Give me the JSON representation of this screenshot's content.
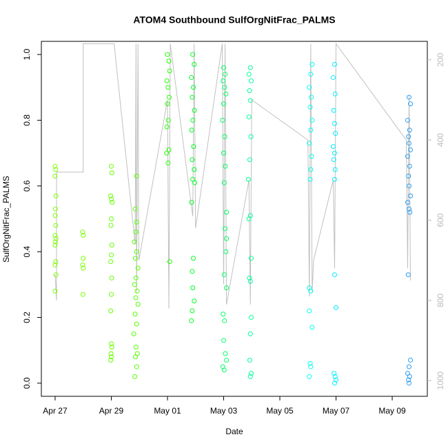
{
  "chart_data": {
    "type": "scatter",
    "title": "ATOM4 Southbound SulfOrgNitFrac_PALMS",
    "x_label": "Date",
    "y_label": "SulfOrgNitFrac_PALMS",
    "xlim": [
      -0.49,
      13.25
    ],
    "xticks": [
      {
        "value": 0,
        "label": "Apr 27"
      },
      {
        "value": 2,
        "label": "Apr 29"
      },
      {
        "value": 4,
        "label": "May 01"
      },
      {
        "value": 6,
        "label": "May 03"
      },
      {
        "value": 8,
        "label": "May 05"
      },
      {
        "value": 10,
        "label": "May 07"
      },
      {
        "value": 12,
        "label": "May 09"
      }
    ],
    "ylim": [
      -0.04,
      1.04
    ],
    "yticks": [
      {
        "value": 0,
        "label": "0.0"
      },
      {
        "value": 0.2,
        "label": "0.2"
      },
      {
        "value": 0.4,
        "label": "0.4"
      },
      {
        "value": 0.6,
        "label": "0.6"
      },
      {
        "value": 0.8,
        "label": "0.8"
      },
      {
        "value": 1,
        "label": "1.0"
      }
    ],
    "y2lim": [
      1039,
      154
    ],
    "y2ticks": [
      200,
      400,
      600,
      800,
      1000
    ],
    "y2_color": "#bbbbbb",
    "grid": false,
    "series": [
      {
        "color": "#7fff00",
        "x": [
          0,
          0.02,
          0,
          0.03,
          0.01,
          0,
          0.02,
          0,
          0.03,
          0.01,
          0,
          0.02,
          0,
          0.03,
          0
        ],
        "values": [
          0.66,
          0.65,
          0.63,
          0.57,
          0.53,
          0.51,
          0.48,
          0.45,
          0.44,
          0.43,
          0.42,
          0.37,
          0.36,
          0.33,
          0.28
        ]
      },
      {
        "color": "#7aff00",
        "x": [
          0.98,
          1.0,
          1.0,
          0.98,
          1.0,
          0.99
        ],
        "values": [
          0.46,
          0.45,
          0.38,
          0.36,
          0.35,
          0.27
        ]
      },
      {
        "color": "#66ff00",
        "x": [
          2.0,
          2.02,
          1.98,
          2.0,
          2.03,
          2.0,
          1.99,
          2.02,
          2.0,
          1.98,
          2.01,
          2.0,
          1.98,
          2.0,
          2.02,
          1.99,
          2.0,
          1.98
        ],
        "values": [
          0.66,
          0.64,
          0.57,
          0.56,
          0.55,
          0.5,
          0.48,
          0.42,
          0.39,
          0.37,
          0.32,
          0.27,
          0.22,
          0.12,
          0.11,
          0.09,
          0.08,
          0.07
        ]
      },
      {
        "color": "#55ff00",
        "x": [
          2.9,
          2.85,
          2.9,
          2.88,
          2.82,
          2.9,
          2.86,
          2.95,
          2.88,
          2.83,
          2.92,
          2.87,
          2.95,
          2.85,
          2.9,
          2.8,
          2.88,
          2.93,
          2.86,
          2.9,
          2.84
        ],
        "values": [
          0.63,
          0.53,
          0.49,
          0.46,
          0.43,
          0.4,
          0.38,
          0.35,
          0.32,
          0.3,
          0.28,
          0.26,
          0.24,
          0.21,
          0.18,
          0.15,
          0.11,
          0.09,
          0.08,
          0.05,
          0.02
        ]
      },
      {
        "color": "#22ff00",
        "x": [
          4.0,
          4.05,
          4.08,
          3.98,
          4.02,
          4.06,
          4.0,
          4.03,
          3.98,
          4.05,
          3.97,
          4.02,
          4.08
        ],
        "values": [
          1.0,
          0.98,
          0.95,
          0.92,
          0.9,
          0.87,
          0.85,
          0.8,
          0.78,
          0.71,
          0.7,
          0.67,
          0.37
        ]
      },
      {
        "color": "#00ff22",
        "x": [
          4.9,
          4.95,
          4.85,
          4.92,
          4.88,
          4.96,
          4.9,
          4.86,
          4.93,
          4.88,
          4.95,
          4.9,
          4.97,
          4.86,
          4.92,
          4.88,
          4.9,
          4.95,
          4.88,
          4.85
        ],
        "values": [
          1.0,
          0.97,
          0.93,
          0.9,
          0.87,
          0.83,
          0.8,
          0.77,
          0.72,
          0.68,
          0.65,
          0.62,
          0.61,
          0.55,
          0.38,
          0.34,
          0.29,
          0.25,
          0.22,
          0.19
        ]
      },
      {
        "color": "#00ff66",
        "x": [
          6.0,
          6.05,
          5.98,
          6.03,
          6.08,
          6.0,
          5.96,
          6.04,
          6.0,
          6.06,
          6.02,
          6.1,
          6.05,
          6.1,
          6.08,
          6.02,
          6.1,
          5.98,
          6.03,
          6.0,
          6.06,
          6.1,
          5.97,
          6.02
        ],
        "values": [
          0.96,
          0.94,
          0.92,
          0.9,
          0.88,
          0.85,
          0.8,
          0.75,
          0.7,
          0.66,
          0.61,
          0.52,
          0.47,
          0.44,
          0.4,
          0.33,
          0.29,
          0.21,
          0.19,
          0.13,
          0.09,
          0.07,
          0.05,
          0.04
        ]
      },
      {
        "color": "#00ff99",
        "x": [
          6.95,
          6.9,
          6.98,
          6.92,
          6.95,
          6.9,
          6.97,
          6.93,
          6.88,
          6.95,
          6.9,
          6.98,
          6.92,
          6.95,
          6.98,
          6.95,
          6.93,
          6.98,
          6.95
        ],
        "values": [
          0.96,
          0.94,
          0.92,
          0.89,
          0.86,
          0.81,
          0.75,
          0.68,
          0.62,
          0.51,
          0.5,
          0.38,
          0.32,
          0.31,
          0.2,
          0.15,
          0.07,
          0.03,
          0.02
        ]
      },
      {
        "color": "#00ffee",
        "x": [
          9.15,
          9.1,
          9.05,
          9.12,
          9.08,
          9.15,
          9.1,
          9.05,
          9.13,
          9.1,
          9.08,
          9.05,
          9.1,
          9.05,
          9.15,
          9.08,
          9.1,
          9.05
        ],
        "values": [
          0.97,
          0.94,
          0.9,
          0.87,
          0.84,
          0.8,
          0.77,
          0.73,
          0.69,
          0.65,
          0.62,
          0.29,
          0.28,
          0.22,
          0.17,
          0.06,
          0.05,
          0.02
        ]
      },
      {
        "color": "#00eeff",
        "x": [
          9.95,
          9.9,
          9.97,
          9.92,
          9.95,
          9.98,
          9.9,
          9.95,
          9.92,
          9.97,
          9.95,
          9.95,
          10.0,
          9.93,
          9.97,
          10.0,
          9.95
        ],
        "values": [
          0.97,
          0.93,
          0.88,
          0.83,
          0.79,
          0.76,
          0.72,
          0.7,
          0.68,
          0.65,
          0.62,
          0.33,
          0.23,
          0.03,
          0.02,
          0.01,
          0.0
        ]
      },
      {
        "color": "#2a9df4",
        "x": [
          12.6,
          12.65,
          12.55,
          12.62,
          12.58,
          12.6,
          12.65,
          12.55,
          12.62,
          12.58,
          12.6,
          12.65,
          12.55,
          12.6,
          12.63,
          12.57,
          12.65,
          12.6,
          12.55,
          12.62,
          12.58,
          12.6
        ],
        "values": [
          0.87,
          0.85,
          0.8,
          0.77,
          0.75,
          0.73,
          0.71,
          0.69,
          0.66,
          0.63,
          0.6,
          0.57,
          0.55,
          0.53,
          0.52,
          0.33,
          0.07,
          0.05,
          0.03,
          0.02,
          0.01,
          0.0
        ]
      },
      {
        "type": "line",
        "axis": "y2",
        "color": "#c0c0c0",
        "x": [
          0,
          0.05,
          0.05,
          1.0,
          1.0,
          2.1,
          2.85,
          2.88,
          2.9,
          2.95,
          2.98,
          4.0,
          4.05,
          4.1,
          4.9,
          4.95,
          5.0,
          5.95,
          6.0,
          6.05,
          6.1,
          6.9,
          6.95,
          7.0,
          9.0,
          9.05,
          9.1,
          9.15,
          9.2,
          9.9,
          9.95,
          10.0,
          12.5,
          12.55,
          12.6,
          12.65
        ],
        "values": [
          735,
          800,
          480,
          480,
          160,
          160,
          660,
          160,
          780,
          160,
          700,
          300,
          820,
          160,
          590,
          160,
          620,
          160,
          760,
          160,
          810,
          500,
          810,
          300,
          400,
          790,
          160,
          780,
          700,
          500,
          720,
          160,
          400,
          720,
          290,
          750
        ]
      }
    ]
  }
}
